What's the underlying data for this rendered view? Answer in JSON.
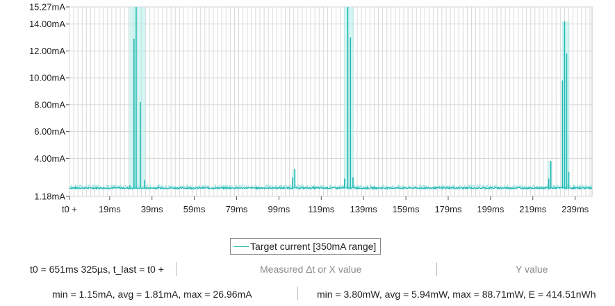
{
  "chart_data": {
    "type": "line",
    "title": "",
    "xlabel": "",
    "ylabel": "",
    "ylim": [
      1.18,
      15.27
    ],
    "xlim": [
      0,
      247
    ],
    "y_ticks": [
      "15.27mA",
      "14.00mA",
      "12.00mA",
      "10.00mA",
      "8.00mA",
      "6.00mA",
      "4.00mA",
      "1.18mA"
    ],
    "y_tick_values": [
      15.27,
      14.0,
      12.0,
      10.0,
      8.0,
      6.0,
      4.0,
      1.18
    ],
    "x_ticks": [
      "t0 +",
      "19ms",
      "39ms",
      "59ms",
      "79ms",
      "99ms",
      "119ms",
      "139ms",
      "159ms",
      "179ms",
      "199ms",
      "219ms",
      "239ms"
    ],
    "x_tick_values": [
      0,
      19,
      39,
      59,
      79,
      99,
      119,
      139,
      159,
      179,
      199,
      219,
      239
    ],
    "grid": true,
    "series": [
      {
        "name": "Target current [350mA range]",
        "color": "#1fb8b3",
        "baseline_mA": 1.8,
        "events": [
          {
            "x": [
              28.5,
              30.5,
              31.5,
              33.5,
              35.5
            ],
            "y": [
              2.0,
              12.9,
              15.27,
              8.2,
              2.4
            ]
          },
          {
            "x": [
              105.5,
              106.5
            ],
            "y": [
              2.6,
              3.2
            ]
          },
          {
            "x": [
              130.0,
              131.5,
              132.8,
              134.0
            ],
            "y": [
              2.5,
              15.27,
              13.0,
              2.6
            ]
          },
          {
            "x": [
              226.5,
              227.5
            ],
            "y": [
              2.5,
              3.8
            ]
          },
          {
            "x": [
              233.0,
              234.0,
              235.0,
              236.0
            ],
            "y": [
              9.8,
              14.2,
              11.8,
              3.0
            ]
          }
        ]
      }
    ]
  },
  "legend": {
    "label": "Target current [350mA range]"
  },
  "stats": {
    "time_line": "t0 = 651ms 325µs, t_last = t0 +",
    "measured_label": "Measured Δt or X value",
    "y_label": "Y value",
    "current_summary": "min = 1.15mA, avg = 1.81mA, max = 26.96mA",
    "power_summary": "min = 3.80mW, avg = 5.94mW, max = 88.71mW, E = 414.51nWh"
  }
}
